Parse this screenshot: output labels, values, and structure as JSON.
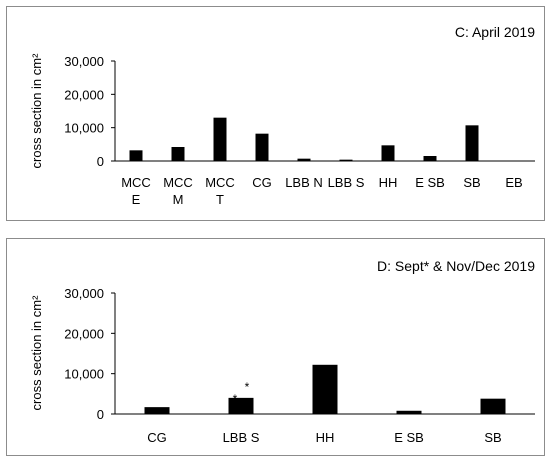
{
  "chart_data": [
    {
      "type": "bar",
      "title": "C: April 2019",
      "ylabel": "cross section in cm²",
      "ylim": [
        0,
        30000
      ],
      "yticks": [
        "0",
        "10,000",
        "20,000",
        "30,000"
      ],
      "ytick_values": [
        0,
        10000,
        20000,
        30000
      ],
      "categories": [
        [
          "MCC",
          "E"
        ],
        [
          "MCC",
          "M"
        ],
        [
          "MCC",
          "T"
        ],
        [
          "CG"
        ],
        [
          "LBB N"
        ],
        [
          "LBB S"
        ],
        [
          "HH"
        ],
        [
          "E SB"
        ],
        [
          "SB"
        ],
        [
          "EB"
        ]
      ],
      "values": [
        3200,
        4200,
        13000,
        8200,
        700,
        400,
        4700,
        1500,
        10700,
        0
      ],
      "grid": false
    },
    {
      "type": "bar",
      "title": "D: Sept* & Nov/Dec 2019",
      "ylabel": "cross section in cm²",
      "ylim": [
        0,
        30000
      ],
      "yticks": [
        "0",
        "10,000",
        "20,000",
        "30,000"
      ],
      "ytick_values": [
        0,
        10000,
        20000,
        30000
      ],
      "categories": [
        [
          "CG"
        ],
        [
          "LBB S"
        ],
        [
          "HH"
        ],
        [
          "E SB"
        ],
        [
          "SB"
        ]
      ],
      "values": [
        1700,
        4000,
        12200,
        800,
        3800
      ],
      "annotations": [
        {
          "category": "LBB S",
          "text": "*"
        },
        {
          "category": "LBB S",
          "text": "*"
        }
      ],
      "grid": false
    }
  ]
}
